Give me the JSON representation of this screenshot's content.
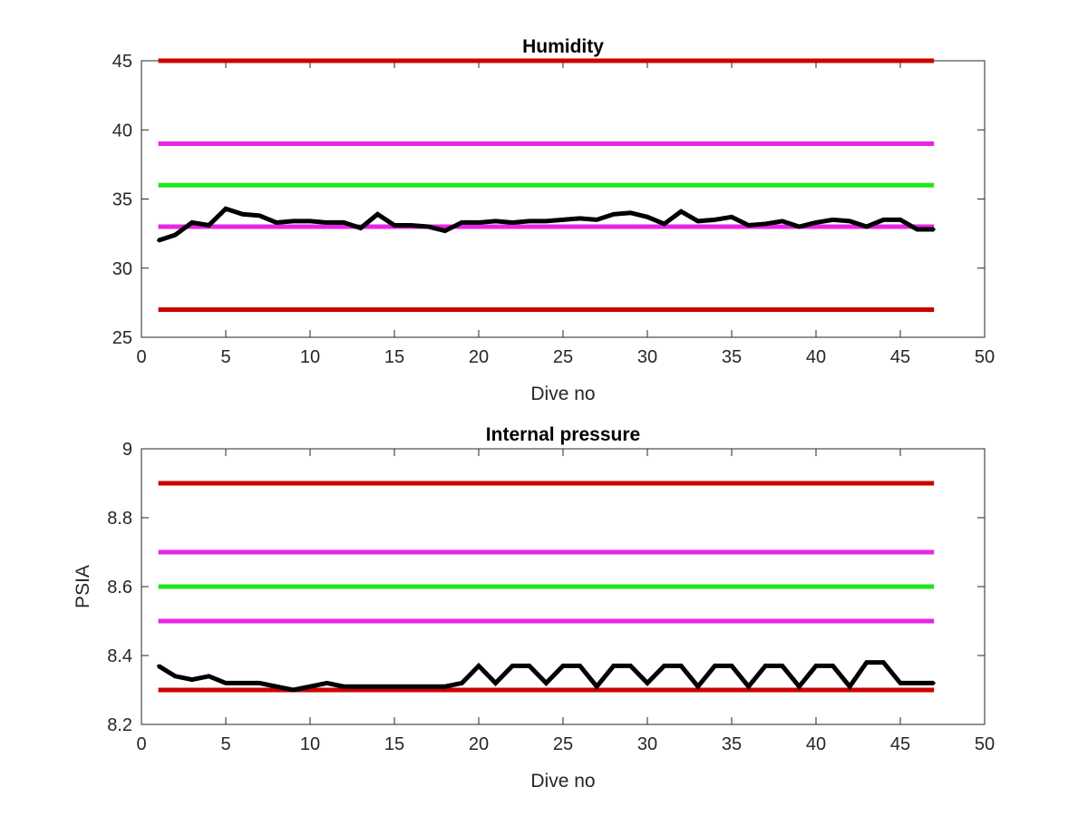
{
  "colors": {
    "background": "#ffffff",
    "axis": "#262626",
    "red_limit": "#cc0000",
    "magenta_limit": "#e626e6",
    "green_target": "#1ee61e",
    "series": "#000000"
  },
  "chart_data": [
    {
      "type": "line",
      "title": "Humidity",
      "xlabel": "Dive no",
      "ylabel": "",
      "xlim": [
        0,
        50
      ],
      "ylim": [
        25,
        45
      ],
      "xticks": [
        0,
        5,
        10,
        15,
        20,
        25,
        30,
        35,
        40,
        45,
        50
      ],
      "yticks": [
        25,
        30,
        35,
        40,
        45
      ],
      "grid": false,
      "x": [
        1,
        2,
        3,
        4,
        5,
        6,
        7,
        8,
        9,
        10,
        11,
        12,
        13,
        14,
        15,
        16,
        17,
        18,
        19,
        20,
        21,
        22,
        23,
        24,
        25,
        26,
        27,
        28,
        29,
        30,
        31,
        32,
        33,
        34,
        35,
        36,
        37,
        38,
        39,
        40,
        41,
        42,
        43,
        44,
        45,
        46,
        47
      ],
      "series": [
        {
          "color": "#000000",
          "values": [
            32.0,
            32.4,
            33.3,
            33.1,
            34.3,
            33.9,
            33.8,
            33.3,
            33.4,
            33.4,
            33.3,
            33.3,
            32.9,
            33.9,
            33.1,
            33.1,
            33.0,
            32.7,
            33.3,
            33.3,
            33.4,
            33.3,
            33.4,
            33.4,
            33.5,
            33.6,
            33.5,
            33.9,
            34.0,
            33.7,
            33.2,
            34.1,
            33.4,
            33.5,
            33.7,
            33.1,
            33.2,
            33.4,
            33.0,
            33.3,
            33.5,
            33.4,
            33.0,
            33.5,
            33.5,
            32.8,
            32.8
          ]
        }
      ],
      "reference_lines": [
        {
          "y": 45,
          "color": "#cc0000",
          "x_range": [
            1,
            47
          ]
        },
        {
          "y": 39,
          "color": "#e626e6",
          "x_range": [
            1,
            47
          ]
        },
        {
          "y": 36,
          "color": "#1ee61e",
          "x_range": [
            1,
            47
          ]
        },
        {
          "y": 33,
          "color": "#e626e6",
          "x_range": [
            1,
            47
          ]
        },
        {
          "y": 27,
          "color": "#cc0000",
          "x_range": [
            1,
            47
          ]
        }
      ]
    },
    {
      "type": "line",
      "title": "Internal pressure",
      "xlabel": "Dive no",
      "ylabel": "PSIA",
      "xlim": [
        0,
        50
      ],
      "ylim": [
        8.2,
        9
      ],
      "xticks": [
        0,
        5,
        10,
        15,
        20,
        25,
        30,
        35,
        40,
        45,
        50
      ],
      "yticks": [
        8.2,
        8.4,
        8.6,
        8.8,
        9
      ],
      "ytick_labels": [
        "8.2",
        "8.4",
        "8.6",
        "8.8",
        "9"
      ],
      "grid": false,
      "x": [
        1,
        2,
        3,
        4,
        5,
        6,
        7,
        8,
        9,
        10,
        11,
        12,
        13,
        14,
        15,
        16,
        17,
        18,
        19,
        20,
        21,
        22,
        23,
        24,
        25,
        26,
        27,
        28,
        29,
        30,
        31,
        32,
        33,
        34,
        35,
        36,
        37,
        38,
        39,
        40,
        41,
        42,
        43,
        44,
        45,
        46,
        47
      ],
      "series": [
        {
          "color": "#000000",
          "values": [
            8.37,
            8.34,
            8.33,
            8.34,
            8.32,
            8.32,
            8.32,
            8.31,
            8.3,
            8.31,
            8.32,
            8.31,
            8.31,
            8.31,
            8.31,
            8.31,
            8.31,
            8.31,
            8.32,
            8.37,
            8.32,
            8.37,
            8.37,
            8.32,
            8.37,
            8.37,
            8.31,
            8.37,
            8.37,
            8.32,
            8.37,
            8.37,
            8.31,
            8.37,
            8.37,
            8.31,
            8.37,
            8.37,
            8.31,
            8.37,
            8.37,
            8.31,
            8.38,
            8.38,
            8.32,
            8.32,
            8.32
          ]
        }
      ],
      "reference_lines": [
        {
          "y": 8.9,
          "color": "#cc0000",
          "x_range": [
            1,
            47
          ]
        },
        {
          "y": 8.7,
          "color": "#e626e6",
          "x_range": [
            1,
            47
          ]
        },
        {
          "y": 8.6,
          "color": "#1ee61e",
          "x_range": [
            1,
            47
          ]
        },
        {
          "y": 8.5,
          "color": "#e626e6",
          "x_range": [
            1,
            47
          ]
        },
        {
          "y": 8.3,
          "color": "#cc0000",
          "x_range": [
            1,
            47
          ]
        }
      ]
    }
  ]
}
